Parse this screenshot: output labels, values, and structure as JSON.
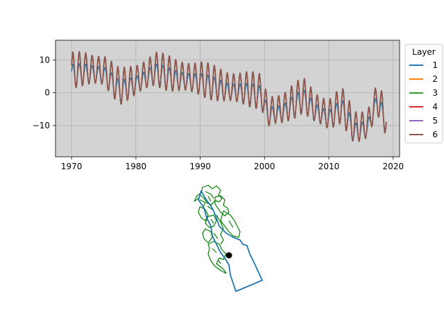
{
  "chart_data": [
    {
      "type": "line",
      "title": "",
      "xlabel": "",
      "ylabel": "",
      "xlim": [
        1967.5,
        2021.0
      ],
      "ylim": [
        -19.5,
        16.0
      ],
      "x_ticks": [
        1970,
        1980,
        1990,
        2000,
        2010,
        2020
      ],
      "y_ticks": [
        -10,
        0,
        10
      ],
      "grid": true,
      "background": "#d3d3d3",
      "legend": {
        "title": "Layer",
        "placement": "outside-right"
      },
      "x_start": 1970.0,
      "x_end": 2018.9,
      "samples_per_year": 12,
      "baseline": {
        "x": [
          1970,
          1972,
          1975,
          1977.5,
          1980,
          1983,
          1986,
          1990,
          1994,
          1997,
          1999.5,
          2000.5,
          2003,
          2006,
          2008,
          2010,
          2012,
          2014,
          2016,
          2017.5,
          2018.9
        ],
        "y": [
          6.5,
          7.0,
          6.5,
          1.5,
          3.5,
          7.0,
          5.0,
          4.0,
          1.5,
          1.0,
          0.0,
          -6.0,
          -5.0,
          -1.0,
          -5.0,
          -7.0,
          -4.0,
          -11.0,
          -10.0,
          -2.0,
          -8.0
        ]
      },
      "series": [
        {
          "name": "1",
          "color": "#1f77b4",
          "amplitude": 2.8,
          "offset": -1.0
        },
        {
          "name": "2",
          "color": "#ff7f0e",
          "amplitude": 4.4,
          "offset": 0.0
        },
        {
          "name": "3",
          "color": "#2ca02c",
          "amplitude": 4.6,
          "offset": 0.0
        },
        {
          "name": "4",
          "color": "#d62728",
          "amplitude": 4.7,
          "offset": 0.2
        },
        {
          "name": "5",
          "color": "#9467bd",
          "amplitude": 4.8,
          "offset": 0.3
        },
        {
          "name": "6",
          "color": "#8c564b",
          "amplitude": 4.9,
          "offset": 0.4
        }
      ]
    },
    {
      "type": "map",
      "title": "",
      "outline_color": "#1f77b4",
      "subbasin_color": "#008000",
      "marker_color": "#000000"
    }
  ]
}
